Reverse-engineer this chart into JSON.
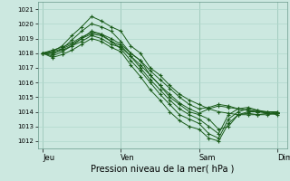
{
  "xlabel": "Pression niveau de la mer( hPa )",
  "ylim": [
    1011.5,
    1021.5
  ],
  "yticks": [
    1012,
    1013,
    1014,
    1015,
    1016,
    1017,
    1018,
    1019,
    1020,
    1021
  ],
  "xtick_labels": [
    "Jeu",
    "Ven",
    "Sam",
    "Dim"
  ],
  "xtick_positions": [
    0,
    96,
    192,
    288
  ],
  "xlim": [
    -6,
    300
  ],
  "bg_color": "#cce8e0",
  "grid_color": "#b0d8cc",
  "line_color": "#1a5c1a",
  "marker": "+",
  "markersize": 2.5,
  "linewidth": 0.7,
  "lines": [
    [
      0,
      1018.0,
      12,
      1018.1,
      24,
      1018.5,
      36,
      1019.2,
      48,
      1019.8,
      60,
      1020.5,
      72,
      1020.2,
      84,
      1019.8,
      96,
      1019.5,
      108,
      1018.5,
      120,
      1018.0,
      132,
      1017.0,
      144,
      1016.5,
      156,
      1015.8,
      168,
      1015.2,
      180,
      1014.8,
      192,
      1014.5,
      204,
      1014.2,
      216,
      1014.0,
      228,
      1013.9,
      240,
      1013.8,
      252,
      1013.8,
      264,
      1013.8,
      276,
      1013.9,
      288,
      1013.9
    ],
    [
      0,
      1018.0,
      12,
      1017.9,
      24,
      1018.3,
      36,
      1018.9,
      48,
      1019.5,
      60,
      1020.0,
      72,
      1019.8,
      84,
      1019.5,
      96,
      1018.8,
      108,
      1018.0,
      120,
      1017.5,
      132,
      1016.5,
      144,
      1015.8,
      156,
      1015.0,
      168,
      1014.5,
      180,
      1014.0,
      192,
      1013.8,
      204,
      1013.5,
      216,
      1012.8,
      228,
      1013.0,
      240,
      1013.8,
      252,
      1014.0,
      264,
      1014.0,
      276,
      1013.9,
      288,
      1013.8
    ],
    [
      0,
      1018.0,
      12,
      1017.8,
      24,
      1018.1,
      36,
      1018.5,
      48,
      1019.0,
      60,
      1019.5,
      72,
      1019.3,
      84,
      1018.8,
      96,
      1018.3,
      108,
      1017.5,
      120,
      1016.8,
      132,
      1016.0,
      144,
      1015.2,
      156,
      1014.5,
      168,
      1013.8,
      180,
      1013.5,
      192,
      1013.2,
      204,
      1012.5,
      216,
      1012.2,
      228,
      1013.5,
      240,
      1014.0,
      252,
      1014.2,
      264,
      1014.1,
      276,
      1013.9,
      288,
      1013.9
    ],
    [
      0,
      1018.0,
      12,
      1017.7,
      24,
      1017.9,
      36,
      1018.2,
      48,
      1018.6,
      60,
      1019.0,
      72,
      1018.8,
      84,
      1018.4,
      96,
      1018.1,
      108,
      1017.2,
      120,
      1016.4,
      132,
      1015.5,
      144,
      1014.8,
      156,
      1014.0,
      168,
      1013.4,
      180,
      1013.0,
      192,
      1012.8,
      204,
      1012.2,
      216,
      1012.0,
      228,
      1013.2,
      240,
      1013.8,
      252,
      1013.9,
      264,
      1013.8,
      276,
      1013.8,
      288,
      1013.9
    ],
    [
      0,
      1018.0,
      12,
      1018.0,
      24,
      1018.2,
      36,
      1018.5,
      48,
      1018.8,
      60,
      1019.2,
      72,
      1019.0,
      84,
      1018.6,
      96,
      1018.4,
      108,
      1017.8,
      120,
      1017.0,
      132,
      1016.2,
      144,
      1015.5,
      156,
      1014.8,
      168,
      1014.2,
      180,
      1013.8,
      192,
      1013.5,
      204,
      1013.0,
      216,
      1012.5,
      228,
      1013.8,
      240,
      1014.2,
      252,
      1014.3,
      264,
      1014.1,
      276,
      1014.0,
      288,
      1013.9
    ],
    [
      0,
      1018.0,
      12,
      1018.1,
      24,
      1018.3,
      36,
      1018.6,
      48,
      1019.0,
      60,
      1019.3,
      72,
      1019.2,
      84,
      1018.8,
      96,
      1018.5,
      108,
      1017.8,
      120,
      1017.2,
      132,
      1016.5,
      144,
      1015.8,
      156,
      1015.2,
      168,
      1014.6,
      180,
      1014.2,
      192,
      1013.9,
      204,
      1014.2,
      216,
      1014.4,
      228,
      1014.3,
      240,
      1014.2,
      252,
      1014.1,
      264,
      1014.0,
      276,
      1014.0,
      288,
      1014.0
    ],
    [
      0,
      1018.0,
      12,
      1018.2,
      24,
      1018.4,
      36,
      1018.7,
      48,
      1019.1,
      60,
      1019.4,
      72,
      1019.3,
      84,
      1019.0,
      96,
      1018.6,
      108,
      1018.0,
      120,
      1017.5,
      132,
      1016.8,
      144,
      1016.2,
      156,
      1015.6,
      168,
      1015.0,
      180,
      1014.5,
      192,
      1014.2,
      204,
      1014.3,
      216,
      1014.5,
      228,
      1014.4,
      240,
      1014.2,
      252,
      1014.1,
      264,
      1014.0,
      276,
      1014.0,
      288,
      1014.0
    ]
  ]
}
